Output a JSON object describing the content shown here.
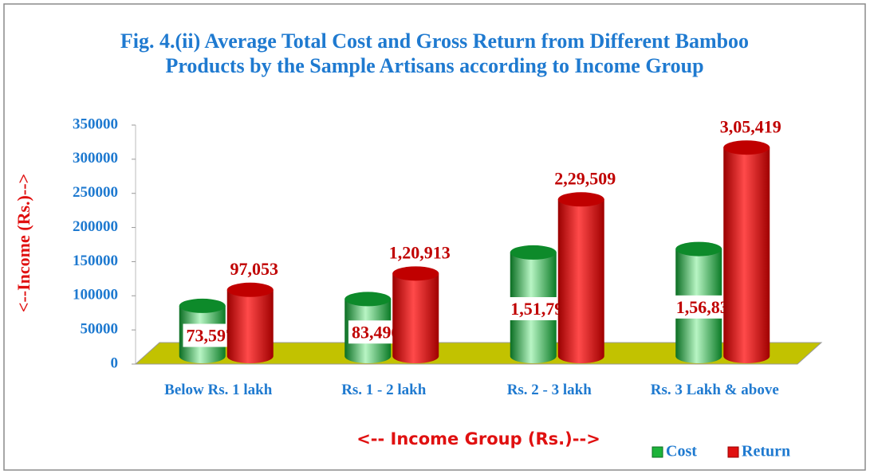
{
  "chart_data": {
    "type": "bar",
    "title": "Fig. 4.(ii) Average Total Cost and Gross Return from Different Bamboo Products by the Sample Artisans according to Income Group",
    "x_label": "<-- Income Group (Rs.)-->",
    "y_label": "<--Income (Rs.)-->",
    "categories": [
      "Below Rs. 1 lakh",
      "Rs. 1 - 2 lakh",
      "Rs. 2 - 3 lakh",
      "Rs. 3 Lakh & above"
    ],
    "series": [
      {
        "name": "Cost",
        "color": "#1db33a",
        "values": [
          73597,
          83496,
          151796,
          156834
        ],
        "value_labels": [
          "73,597",
          "83,496",
          "1,51,796",
          "1,56,834"
        ]
      },
      {
        "name": "Return",
        "color": "#e01010",
        "values": [
          97053,
          120913,
          229509,
          305419
        ],
        "value_labels": [
          "97,053",
          "1,20,913",
          "2,29,509",
          "3,05,419"
        ]
      }
    ],
    "ylim": [
      0,
      350000
    ],
    "yticks": [
      0,
      50000,
      100000,
      150000,
      200000,
      250000,
      300000,
      350000
    ],
    "legend": "bottom-right"
  }
}
